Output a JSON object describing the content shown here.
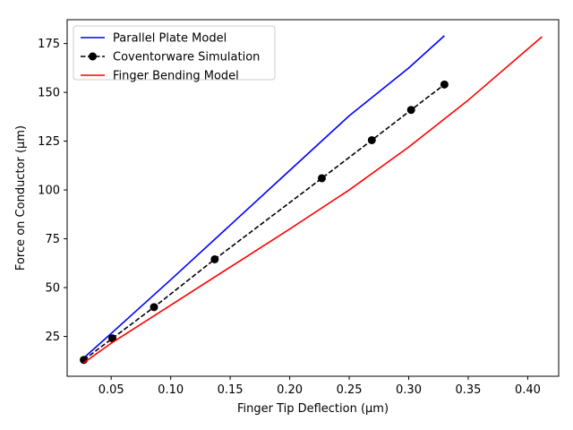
{
  "chart_data": {
    "type": "line",
    "xlabel": "Finger Tip Deflection (μm)",
    "ylabel": "Force on Conductor (μm)",
    "xlim": [
      0.013,
      0.426
    ],
    "ylim": [
      4.6,
      187.2
    ],
    "xticks": [
      0.05,
      0.1,
      0.15,
      0.2,
      0.25,
      0.3,
      0.35,
      0.4
    ],
    "xtick_labels": [
      "0.05",
      "0.10",
      "0.15",
      "0.20",
      "0.25",
      "0.30",
      "0.35",
      "0.40"
    ],
    "yticks": [
      25,
      50,
      75,
      100,
      125,
      150,
      175
    ],
    "ytick_labels": [
      "25",
      "50",
      "75",
      "100",
      "125",
      "150",
      "175"
    ],
    "grid": false,
    "legend_position": "top-left",
    "series": [
      {
        "name": "Parallel Plate Model",
        "color": "#0000ff",
        "style": "solid",
        "marker": "none",
        "x": [
          0.027,
          0.05,
          0.1,
          0.15,
          0.2,
          0.25,
          0.3,
          0.33
        ],
        "y": [
          14.0,
          26.5,
          54.0,
          82.0,
          110.0,
          138.0,
          162.5,
          179.0
        ]
      },
      {
        "name": "Coventorware Simulation",
        "color": "#000000",
        "style": "dashed",
        "marker": "circle",
        "x": [
          0.027,
          0.051,
          0.086,
          0.137,
          0.227,
          0.269,
          0.302,
          0.33
        ],
        "y": [
          13.0,
          24.0,
          40.0,
          64.5,
          106.0,
          125.5,
          141.0,
          154.0
        ]
      },
      {
        "name": "Finger Bending Model",
        "color": "#ff0000",
        "style": "solid",
        "marker": "none",
        "x": [
          0.027,
          0.05,
          0.1,
          0.15,
          0.2,
          0.25,
          0.3,
          0.35,
          0.412
        ],
        "y": [
          11.5,
          21.5,
          41.0,
          60.5,
          80.0,
          100.0,
          122.0,
          146.0,
          178.5
        ]
      }
    ]
  }
}
